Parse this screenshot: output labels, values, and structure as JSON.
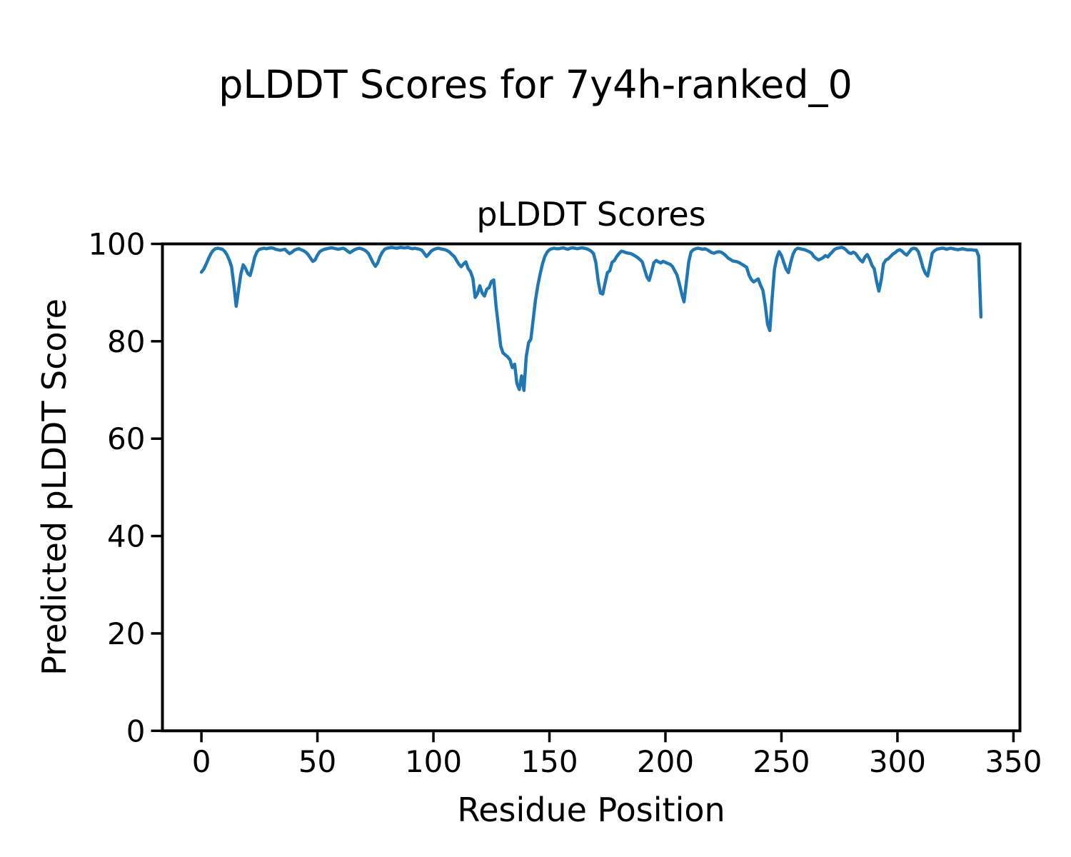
{
  "figure": {
    "suptitle": "pLDDT Scores for 7y4h-ranked_0",
    "background": "#ffffff",
    "text_color": "#000000"
  },
  "chart_data": {
    "type": "line",
    "title": "pLDDT Scores",
    "xlabel": "Residue Position",
    "ylabel": "Predicted pLDDT Score",
    "xlim": [
      -16.8,
      352.8
    ],
    "ylim": [
      0,
      100
    ],
    "xticks": [
      0,
      50,
      100,
      150,
      200,
      250,
      300,
      350
    ],
    "yticks": [
      0,
      20,
      40,
      60,
      80,
      100
    ],
    "grid": false,
    "legend": "none",
    "line_color": "#1f77b4",
    "line_width": 4.5,
    "series": [
      {
        "name": "pLDDT",
        "x_start": 0,
        "x_step": 1,
        "values": [
          94.2,
          94.8,
          95.8,
          96.9,
          97.9,
          98.6,
          99.0,
          99.1,
          99.0,
          98.9,
          98.5,
          97.8,
          96.7,
          95.3,
          91.5,
          87.2,
          90.5,
          93.8,
          95.7,
          95.0,
          93.9,
          93.5,
          95.3,
          97.3,
          98.4,
          98.9,
          99.0,
          99.1,
          99.0,
          99.1,
          99.2,
          99.1,
          98.9,
          98.8,
          98.7,
          98.8,
          98.9,
          98.4,
          98.0,
          98.3,
          98.7,
          98.9,
          99.0,
          98.8,
          98.6,
          98.3,
          97.8,
          97.1,
          96.4,
          96.7,
          97.7,
          98.4,
          98.7,
          98.9,
          99.0,
          99.1,
          99.2,
          99.1,
          99.0,
          98.9,
          99.0,
          99.1,
          98.9,
          98.5,
          98.2,
          98.5,
          98.8,
          99.0,
          99.1,
          99.0,
          98.8,
          98.5,
          98.0,
          97.1,
          96.1,
          95.4,
          96.1,
          97.4,
          98.3,
          98.9,
          99.1,
          99.2,
          99.3,
          99.2,
          99.1,
          99.2,
          99.3,
          99.2,
          99.2,
          99.3,
          99.1,
          99.0,
          99.1,
          99.0,
          98.9,
          98.7,
          98.1,
          97.4,
          97.9,
          98.5,
          98.8,
          99.0,
          99.1,
          99.0,
          98.9,
          98.8,
          98.6,
          98.3,
          97.8,
          97.4,
          96.6,
          95.8,
          95.3,
          95.9,
          96.3,
          94.9,
          94.3,
          92.9,
          89.0,
          89.8,
          91.4,
          89.9,
          89.3,
          90.7,
          91.0,
          92.3,
          92.6,
          87.2,
          83.2,
          79.0,
          77.6,
          77.2,
          76.8,
          76.2,
          74.6,
          75.3,
          71.3,
          70.1,
          72.9,
          69.9,
          76.8,
          79.7,
          80.4,
          84.5,
          88.5,
          91.5,
          93.8,
          95.9,
          97.4,
          98.3,
          98.8,
          99.0,
          99.1,
          99.0,
          99.0,
          99.1,
          99.2,
          99.0,
          98.9,
          99.1,
          99.2,
          99.1,
          99.0,
          99.1,
          99.2,
          99.1,
          99.0,
          98.8,
          98.5,
          98.0,
          96.2,
          92.5,
          89.9,
          89.7,
          92.0,
          94.1,
          94.5,
          96.2,
          96.6,
          97.4,
          98.0,
          98.5,
          98.4,
          98.2,
          98.1,
          98.0,
          97.8,
          97.5,
          97.2,
          96.8,
          96.3,
          94.8,
          93.2,
          92.5,
          94.2,
          96.1,
          96.6,
          96.3,
          96.1,
          96.4,
          96.2,
          96.0,
          95.8,
          95.4,
          94.5,
          93.6,
          91.8,
          89.8,
          88.1,
          92.0,
          96.2,
          98.3,
          98.8,
          99.0,
          99.1,
          99.0,
          98.9,
          99.0,
          98.8,
          98.5,
          98.2,
          98.1,
          98.3,
          98.4,
          98.3,
          98.0,
          97.6,
          97.1,
          96.8,
          96.5,
          96.4,
          96.3,
          96.1,
          95.8,
          95.5,
          95.2,
          93.6,
          92.7,
          92.2,
          92.5,
          92.8,
          91.5,
          90.5,
          87.5,
          83.5,
          82.2,
          89.0,
          94.8,
          97.2,
          98.4,
          97.6,
          96.2,
          94.8,
          94.1,
          96.2,
          97.9,
          98.8,
          99.1,
          99.0,
          98.9,
          98.8,
          98.6,
          98.4,
          98.1,
          97.4,
          97.0,
          96.7,
          96.9,
          97.2,
          97.6,
          97.3,
          97.9,
          98.4,
          98.9,
          99.1,
          99.2,
          99.3,
          99.1,
          98.7,
          98.2,
          98.0,
          98.3,
          98.0,
          97.3,
          96.7,
          96.3,
          97.3,
          97.8,
          96.9,
          95.6,
          94.9,
          92.3,
          90.3,
          92.6,
          95.9,
          96.7,
          96.9,
          97.4,
          97.9,
          98.2,
          98.6,
          98.8,
          98.5,
          98.0,
          97.7,
          98.3,
          98.9,
          99.1,
          99.0,
          98.4,
          96.9,
          95.1,
          94.0,
          93.4,
          95.6,
          98.1,
          98.6,
          98.9,
          99.0,
          99.1,
          99.1,
          98.9,
          99.0,
          99.1,
          99.0,
          98.9,
          98.8,
          98.9,
          99.0,
          98.9,
          98.8,
          98.8,
          98.8,
          98.7,
          98.7,
          97.5,
          85.0
        ]
      }
    ]
  }
}
